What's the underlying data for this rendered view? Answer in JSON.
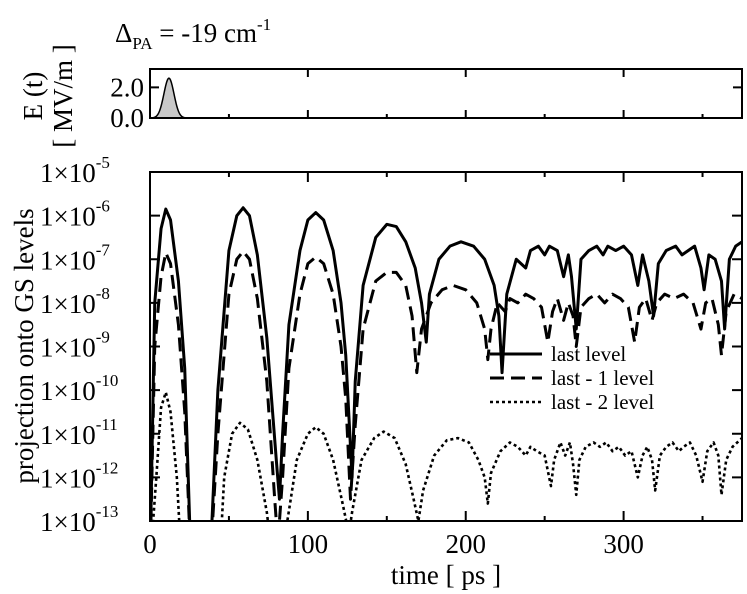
{
  "chart_data": [
    {
      "type": "area",
      "panel": "top",
      "title_main": "Δ",
      "title_sub": "PA",
      "title_rest": " = -19 cm",
      "title_sup": "-1",
      "ylabel_line1": "E (t)",
      "ylabel_line2": "[ MV/m ]",
      "ylim": [
        0,
        3.2
      ],
      "xlim": [
        0,
        375
      ],
      "yticks": [
        {
          "v": 0,
          "label": "0.0"
        },
        {
          "v": 2,
          "label": "2.0"
        }
      ],
      "pulse": {
        "center": 12,
        "sigma": 3.2,
        "peak": 2.6
      },
      "fill_color": "#c8c8c8"
    },
    {
      "type": "line",
      "panel": "bottom",
      "xlabel": "time [ ps ]",
      "ylabel": "projection onto GS levels",
      "xlim": [
        0,
        375
      ],
      "ylim_log10": [
        -13,
        -5
      ],
      "xticks": [
        {
          "v": 0,
          "label": "0"
        },
        {
          "v": 100,
          "label": "100"
        },
        {
          "v": 200,
          "label": "200"
        },
        {
          "v": 300,
          "label": "300"
        }
      ],
      "yticks": [
        {
          "exp": -5,
          "base": "1×10",
          "sup": "-5"
        },
        {
          "exp": -6,
          "base": "1×10",
          "sup": "-6"
        },
        {
          "exp": -7,
          "base": "1×10",
          "sup": "-7"
        },
        {
          "exp": -8,
          "base": "1×10",
          "sup": "-8"
        },
        {
          "exp": -9,
          "base": "1×10",
          "sup": "-9"
        },
        {
          "exp": -10,
          "base": "1×10",
          "sup": "-10"
        },
        {
          "exp": -11,
          "base": "1×10",
          "sup": "-11"
        },
        {
          "exp": -12,
          "base": "1×10",
          "sup": "-12"
        },
        {
          "exp": -13,
          "base": "1×10",
          "sup": "-13"
        }
      ],
      "legend_position": "center-right",
      "series": [
        {
          "name": "last level",
          "style": "solid",
          "points": [
            [
              0,
              -14
            ],
            [
              3,
              -8
            ],
            [
              7,
              -6.3
            ],
            [
              10,
              -5.85
            ],
            [
              13,
              -6.1
            ],
            [
              18,
              -7.5
            ],
            [
              22,
              -9.5
            ],
            [
              26,
              -14
            ],
            [
              38,
              -14
            ],
            [
              43,
              -10
            ],
            [
              50,
              -6.8
            ],
            [
              55,
              -6.0
            ],
            [
              59,
              -5.82
            ],
            [
              63,
              -6.0
            ],
            [
              68,
              -6.9
            ],
            [
              74,
              -8.8
            ],
            [
              80,
              -11.6
            ],
            [
              82,
              -12.5
            ],
            [
              84,
              -11
            ],
            [
              88,
              -8.5
            ],
            [
              95,
              -6.8
            ],
            [
              100,
              -6.1
            ],
            [
              105,
              -5.93
            ],
            [
              110,
              -6.1
            ],
            [
              116,
              -6.8
            ],
            [
              121,
              -8.0
            ],
            [
              124,
              -9.2
            ],
            [
              128,
              -12.0
            ],
            [
              130,
              -9.8
            ],
            [
              135,
              -7.6
            ],
            [
              143,
              -6.5
            ],
            [
              150,
              -6.2
            ],
            [
              156,
              -6.25
            ],
            [
              162,
              -6.6
            ],
            [
              168,
              -7.2
            ],
            [
              172,
              -8.0
            ],
            [
              175,
              -8.9
            ],
            [
              177,
              -7.8
            ],
            [
              183,
              -7.0
            ],
            [
              190,
              -6.7
            ],
            [
              197,
              -6.6
            ],
            [
              205,
              -6.7
            ],
            [
              212,
              -7.0
            ],
            [
              218,
              -7.6
            ],
            [
              221,
              -8.3
            ],
            [
              223,
              -9.6
            ],
            [
              226,
              -7.8
            ],
            [
              232,
              -7.0
            ],
            [
              238,
              -7.2
            ],
            [
              241,
              -6.8
            ],
            [
              246,
              -6.7
            ],
            [
              250,
              -6.9
            ],
            [
              253,
              -6.7
            ],
            [
              258,
              -6.8
            ],
            [
              262,
              -7.4
            ],
            [
              265,
              -6.9
            ],
            [
              267,
              -7.4
            ],
            [
              270,
              -8.6
            ],
            [
              273,
              -7.0
            ],
            [
              278,
              -6.8
            ],
            [
              283,
              -6.7
            ],
            [
              287,
              -6.9
            ],
            [
              290,
              -6.7
            ],
            [
              295,
              -6.8
            ],
            [
              300,
              -6.7
            ],
            [
              305,
              -6.9
            ],
            [
              309,
              -7.6
            ],
            [
              312,
              -6.9
            ],
            [
              316,
              -7.5
            ],
            [
              319,
              -8.3
            ],
            [
              322,
              -7.1
            ],
            [
              327,
              -6.8
            ],
            [
              333,
              -6.7
            ],
            [
              337,
              -6.9
            ],
            [
              341,
              -6.8
            ],
            [
              345,
              -6.7
            ],
            [
              349,
              -7.2
            ],
            [
              351,
              -7.7
            ],
            [
              354,
              -6.9
            ],
            [
              358,
              -7.0
            ],
            [
              362,
              -7.5
            ],
            [
              364,
              -8.6
            ],
            [
              367,
              -7.0
            ],
            [
              371,
              -6.7
            ],
            [
              375,
              -6.6
            ]
          ]
        },
        {
          "name": "last - 1 level",
          "style": "dashed",
          "points": [
            [
              0,
              -14
            ],
            [
              3,
              -9
            ],
            [
              7,
              -7.4
            ],
            [
              10,
              -6.85
            ],
            [
              13,
              -7.1
            ],
            [
              18,
              -8.5
            ],
            [
              22,
              -10.5
            ],
            [
              26,
              -14
            ],
            [
              38,
              -14
            ],
            [
              43,
              -11
            ],
            [
              50,
              -7.8
            ],
            [
              55,
              -7.0
            ],
            [
              59,
              -6.82
            ],
            [
              63,
              -7.0
            ],
            [
              68,
              -7.9
            ],
            [
              74,
              -9.8
            ],
            [
              79,
              -12.5
            ],
            [
              81,
              -13.5
            ],
            [
              84,
              -12
            ],
            [
              88,
              -9.5
            ],
            [
              95,
              -7.8
            ],
            [
              100,
              -7.1
            ],
            [
              105,
              -6.95
            ],
            [
              110,
              -7.1
            ],
            [
              116,
              -7.8
            ],
            [
              121,
              -9.0
            ],
            [
              124,
              -10.2
            ],
            [
              127,
              -12.5
            ],
            [
              130,
              -10.8
            ],
            [
              135,
              -8.6
            ],
            [
              143,
              -7.5
            ],
            [
              150,
              -7.3
            ],
            [
              156,
              -7.3
            ],
            [
              162,
              -7.6
            ],
            [
              166,
              -8.3
            ],
            [
              169,
              -9.6
            ],
            [
              172,
              -8.6
            ],
            [
              178,
              -8.0
            ],
            [
              185,
              -7.7
            ],
            [
              192,
              -7.6
            ],
            [
              200,
              -7.7
            ],
            [
              207,
              -8.0
            ],
            [
              212,
              -8.6
            ],
            [
              214,
              -9.3
            ],
            [
              216,
              -8.6
            ],
            [
              220,
              -8.0
            ],
            [
              225,
              -8.2
            ],
            [
              228,
              -7.9
            ],
            [
              233,
              -8.0
            ],
            [
              238,
              -7.8
            ],
            [
              243,
              -7.9
            ],
            [
              248,
              -8.1
            ],
            [
              252,
              -8.9
            ],
            [
              255,
              -8.2
            ],
            [
              258,
              -7.9
            ],
            [
              262,
              -8.4
            ],
            [
              265,
              -8.0
            ],
            [
              268,
              -8.3
            ],
            [
              270,
              -9.0
            ],
            [
              273,
              -8.1
            ],
            [
              278,
              -7.9
            ],
            [
              283,
              -7.8
            ],
            [
              288,
              -8.0
            ],
            [
              293,
              -7.8
            ],
            [
              298,
              -7.9
            ],
            [
              303,
              -8.1
            ],
            [
              307,
              -8.9
            ],
            [
              310,
              -8.1
            ],
            [
              314,
              -7.9
            ],
            [
              318,
              -8.4
            ],
            [
              321,
              -8.0
            ],
            [
              326,
              -7.8
            ],
            [
              332,
              -7.9
            ],
            [
              338,
              -7.8
            ],
            [
              344,
              -8.0
            ],
            [
              349,
              -8.6
            ],
            [
              352,
              -8.0
            ],
            [
              356,
              -7.9
            ],
            [
              360,
              -8.5
            ],
            [
              362,
              -9.2
            ],
            [
              365,
              -8.2
            ],
            [
              370,
              -7.8
            ],
            [
              375,
              -7.9
            ]
          ]
        },
        {
          "name": "last - 2 level",
          "style": "dotted",
          "points": [
            [
              0,
              -14
            ],
            [
              4,
              -12
            ],
            [
              7,
              -10.4
            ],
            [
              10,
              -10.05
            ],
            [
              13,
              -10.5
            ],
            [
              17,
              -12
            ],
            [
              20,
              -14
            ],
            [
              44,
              -14
            ],
            [
              47,
              -12
            ],
            [
              52,
              -11.0
            ],
            [
              57,
              -10.75
            ],
            [
              62,
              -10.9
            ],
            [
              68,
              -11.6
            ],
            [
              74,
              -12.8
            ],
            [
              78,
              -14
            ],
            [
              84,
              -14
            ],
            [
              87,
              -13
            ],
            [
              93,
              -11.6
            ],
            [
              100,
              -11.0
            ],
            [
              105,
              -10.85
            ],
            [
              110,
              -11.0
            ],
            [
              116,
              -11.6
            ],
            [
              122,
              -12.6
            ],
            [
              126,
              -13.3
            ],
            [
              128,
              -12.8
            ],
            [
              134,
              -11.6
            ],
            [
              142,
              -11.1
            ],
            [
              148,
              -10.95
            ],
            [
              155,
              -11.1
            ],
            [
              162,
              -11.7
            ],
            [
              167,
              -12.5
            ],
            [
              170,
              -13.0
            ],
            [
              173,
              -12.3
            ],
            [
              180,
              -11.5
            ],
            [
              188,
              -11.15
            ],
            [
              195,
              -11.1
            ],
            [
              202,
              -11.2
            ],
            [
              208,
              -11.6
            ],
            [
              212,
              -12.0
            ],
            [
              214,
              -12.6
            ],
            [
              216,
              -11.9
            ],
            [
              222,
              -11.4
            ],
            [
              228,
              -11.2
            ],
            [
              233,
              -11.3
            ],
            [
              238,
              -11.5
            ],
            [
              241,
              -11.3
            ],
            [
              245,
              -11.4
            ],
            [
              250,
              -11.5
            ],
            [
              254,
              -12.2
            ],
            [
              256,
              -11.6
            ],
            [
              260,
              -11.2
            ],
            [
              263,
              -11.5
            ],
            [
              266,
              -11.2
            ],
            [
              268,
              -11.7
            ],
            [
              270,
              -12.4
            ],
            [
              272,
              -11.6
            ],
            [
              276,
              -11.3
            ],
            [
              281,
              -11.2
            ],
            [
              285,
              -11.3
            ],
            [
              289,
              -11.2
            ],
            [
              293,
              -11.4
            ],
            [
              297,
              -11.3
            ],
            [
              301,
              -11.5
            ],
            [
              305,
              -11.4
            ],
            [
              309,
              -12.0
            ],
            [
              312,
              -11.5
            ],
            [
              315,
              -11.3
            ],
            [
              318,
              -11.6
            ],
            [
              320,
              -12.3
            ],
            [
              323,
              -11.5
            ],
            [
              327,
              -11.3
            ],
            [
              331,
              -11.2
            ],
            [
              335,
              -11.4
            ],
            [
              338,
              -11.3
            ],
            [
              342,
              -11.2
            ],
            [
              346,
              -11.5
            ],
            [
              350,
              -12.1
            ],
            [
              353,
              -11.4
            ],
            [
              357,
              -11.2
            ],
            [
              360,
              -11.5
            ],
            [
              362,
              -12.4
            ],
            [
              365,
              -11.6
            ],
            [
              369,
              -11.3
            ],
            [
              372,
              -11.2
            ],
            [
              375,
              -11.1
            ]
          ]
        }
      ]
    }
  ]
}
